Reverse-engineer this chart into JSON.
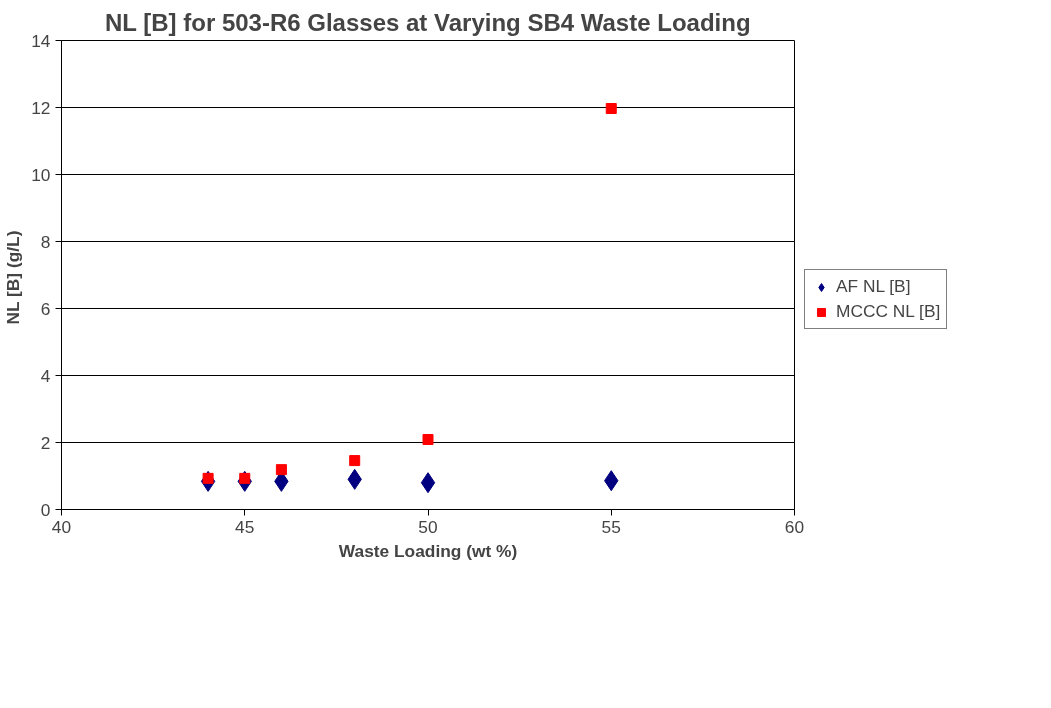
{
  "chart_data": {
    "type": "scatter",
    "title": "NL [B] for 503-R6 Glasses at Varying SB4 Waste Loading",
    "xlabel": "Waste Loading (wt %)",
    "ylabel": "NL [B]  (g/L)",
    "x": [
      44,
      45,
      46,
      48,
      50,
      55
    ],
    "series": [
      {
        "name": "AF NL [B]",
        "color": "#000080",
        "marker": "diamond",
        "values": [
          0.84,
          0.84,
          0.84,
          0.9,
          0.8,
          0.86
        ]
      },
      {
        "name": "MCCC NL [B]",
        "color": "#ff0000",
        "marker": "square",
        "values": [
          0.93,
          0.93,
          1.19,
          1.46,
          2.09,
          11.97
        ]
      }
    ],
    "xlim": [
      40,
      60
    ],
    "xticks": [
      40,
      45,
      50,
      55,
      60
    ],
    "ylim": [
      0,
      14
    ],
    "yticks": [
      0,
      2,
      4,
      6,
      8,
      10,
      12,
      14
    ],
    "grid": "y",
    "legend": "right"
  }
}
